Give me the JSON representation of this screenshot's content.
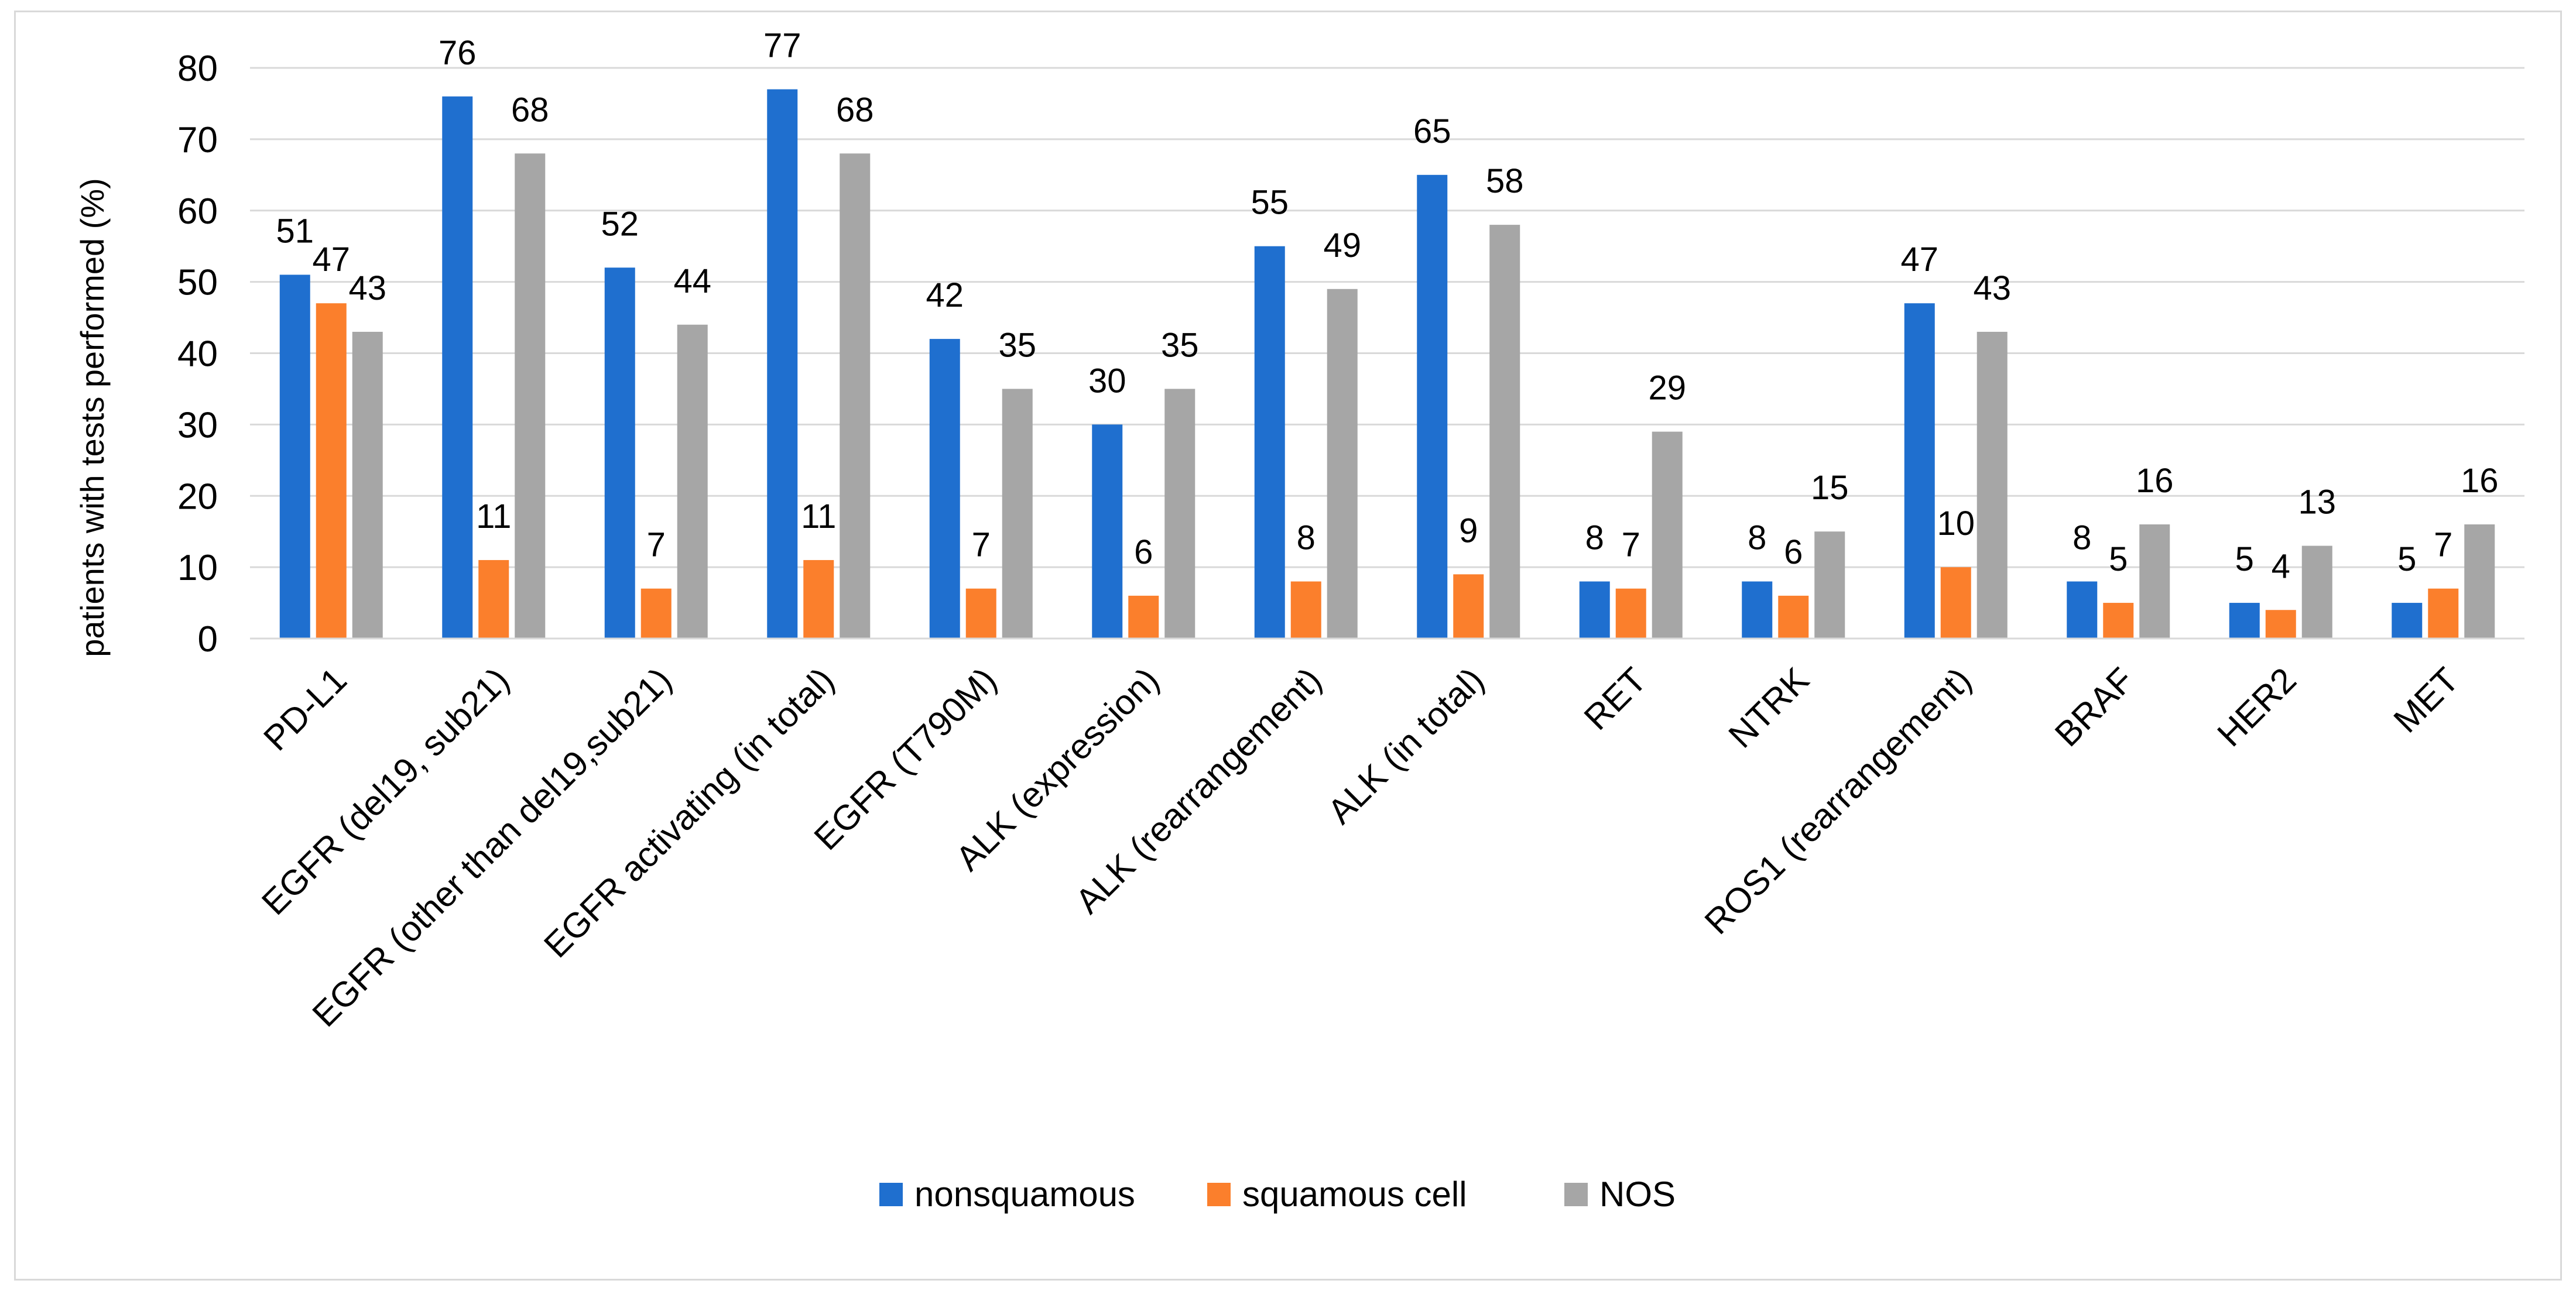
{
  "chart_data": {
    "type": "bar",
    "title": "",
    "xlabel": "",
    "ylabel": "patients with tests performed (%)",
    "ylim": [
      0,
      80
    ],
    "yticks": [
      0,
      10,
      20,
      30,
      40,
      50,
      60,
      70,
      80
    ],
    "grid": true,
    "legend_position": "bottom",
    "categories": [
      "PD-L1",
      "EGFR (del19, sub21)",
      "EGFR (other than del19,sub21)",
      "EGFR activating (in total)",
      "EGFR (T790M)",
      "ALK (expression)",
      "ALK (rearrangement)",
      "ALK (in total)",
      "RET",
      "NTRK",
      "ROS1 (rearrangement)",
      "BRAF",
      "HER2",
      "MET"
    ],
    "series": [
      {
        "name": "nonsquamous",
        "color": "#1f6fcf",
        "values": [
          51,
          76,
          52,
          77,
          42,
          30,
          55,
          65,
          8,
          8,
          47,
          8,
          5,
          5
        ],
        "labels": [
          "51",
          "76",
          "52",
          "77",
          "42",
          "30",
          "55",
          "65",
          "8",
          "8",
          "47",
          "8",
          "5",
          "5"
        ]
      },
      {
        "name": "squamous cell",
        "color": "#fb7f2c",
        "values": [
          47,
          11,
          7,
          11,
          7,
          6,
          8,
          9,
          7,
          6,
          10,
          5,
          4,
          7
        ],
        "labels": [
          "47",
          "11",
          "7",
          "11",
          "7",
          "6",
          "8",
          "9",
          "7",
          "6",
          "10",
          "5",
          "4",
          "7"
        ]
      },
      {
        "name": "NOS",
        "color": "#a6a6a6",
        "values": [
          43,
          68,
          44,
          68,
          35,
          35,
          49,
          58,
          29,
          15,
          43,
          16,
          13,
          16
        ],
        "labels": [
          "43",
          "68",
          "44",
          "68",
          "35",
          "35",
          "49",
          "58",
          "29",
          "15",
          "43",
          "16",
          "13",
          "16"
        ]
      }
    ]
  }
}
